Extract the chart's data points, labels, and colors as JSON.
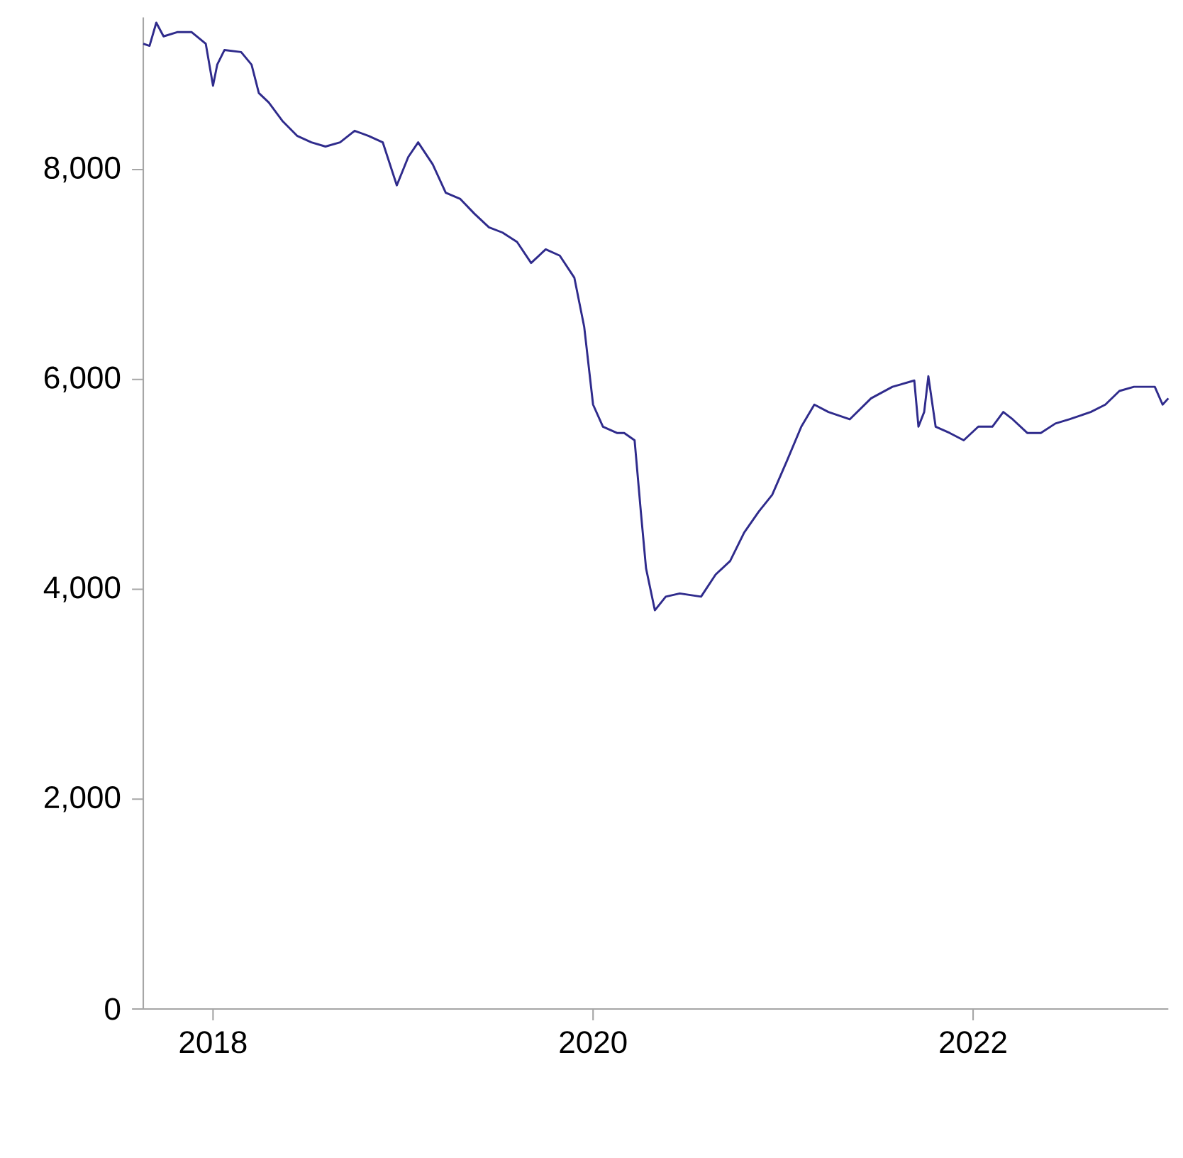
{
  "chart_data": {
    "type": "line",
    "x": [
      "2017-08-20",
      "2017-09-01",
      "2017-09-14",
      "2017-09-28",
      "2017-10-24",
      "2017-11-21",
      "2017-12-18",
      "2018-01-01",
      "2018-01-09",
      "2018-01-23",
      "2018-02-24",
      "2018-03-16",
      "2018-03-30",
      "2018-04-18",
      "2018-05-15",
      "2018-06-12",
      "2018-07-09",
      "2018-08-05",
      "2018-09-02",
      "2018-09-30",
      "2018-10-27",
      "2018-11-23",
      "2018-12-20",
      "2019-01-11",
      "2019-01-30",
      "2019-02-27",
      "2019-03-24",
      "2019-04-21",
      "2019-05-18",
      "2019-06-15",
      "2019-07-11",
      "2019-08-08",
      "2019-09-04",
      "2019-10-02",
      "2019-10-29",
      "2019-11-26",
      "2019-12-15",
      "2020-01-01",
      "2020-01-20",
      "2020-02-16",
      "2020-03-01",
      "2020-03-21",
      "2020-04-02",
      "2020-04-12",
      "2020-04-29",
      "2020-05-20",
      "2020-06-16",
      "2020-07-27",
      "2020-08-24",
      "2020-09-21",
      "2020-10-18",
      "2020-11-15",
      "2020-12-11",
      "2021-01-08",
      "2021-02-05",
      "2021-03-02",
      "2021-03-29",
      "2021-05-09",
      "2021-06-19",
      "2021-07-30",
      "2021-09-10",
      "2021-09-18",
      "2021-09-29",
      "2021-10-07",
      "2021-10-21",
      "2021-11-17",
      "2021-12-14",
      "2022-01-11",
      "2022-02-07",
      "2022-02-28",
      "2022-03-18",
      "2022-04-15",
      "2022-05-11",
      "2022-06-08",
      "2022-07-05",
      "2022-08-15",
      "2022-09-12",
      "2022-10-09",
      "2022-11-06",
      "2022-12-16",
      "2022-12-31",
      "2023-01-11"
    ],
    "series": [
      {
        "color": "#2f2b8c",
        "values": [
          9200,
          9180,
          9400,
          9270,
          9310,
          9310,
          9200,
          8800,
          9000,
          9140,
          9120,
          9000,
          8730,
          8640,
          8460,
          8320,
          8260,
          8220,
          8260,
          8370,
          8320,
          8260,
          7850,
          8120,
          8260,
          8050,
          7780,
          7720,
          7580,
          7450,
          7400,
          7310,
          7110,
          7240,
          7180,
          6970,
          6500,
          5760,
          5550,
          5490,
          5490,
          5420,
          4740,
          4200,
          3800,
          3930,
          3960,
          3930,
          4140,
          4270,
          4540,
          4740,
          4900,
          5220,
          5550,
          5760,
          5690,
          5620,
          5820,
          5930,
          5990,
          5550,
          5690,
          6030,
          5550,
          5490,
          5420,
          5550,
          5550,
          5690,
          5620,
          5490,
          5490,
          5580,
          5620,
          5690,
          5760,
          5890,
          5930,
          5930,
          5760,
          5820
        ]
      }
    ],
    "xlim": [
      "2017-08-20",
      "2023-01-11"
    ],
    "xticks": [
      "2018",
      "2020",
      "2022"
    ],
    "ylim": [
      0,
      9450
    ],
    "yticks": [
      {
        "value": 0,
        "label": "0"
      },
      {
        "value": 2000,
        "label": "2,000"
      },
      {
        "value": 4000,
        "label": "4,000"
      },
      {
        "value": 6000,
        "label": "6,000"
      },
      {
        "value": 8000,
        "label": "8,000"
      }
    ]
  }
}
